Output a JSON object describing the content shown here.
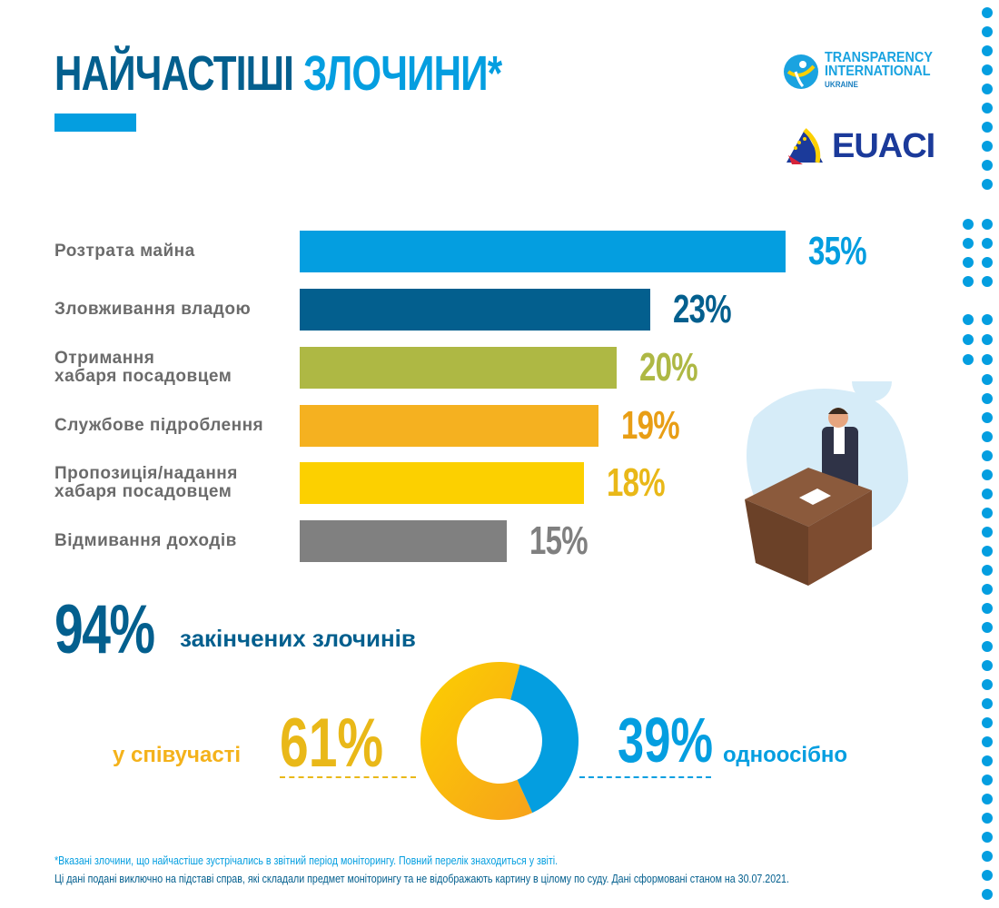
{
  "header": {
    "title_part1": "НАЙЧАСТІШІ",
    "title_part2": "ЗЛОЧИНИ*"
  },
  "logos": {
    "ti_line1": "TRANSPARENCY",
    "ti_line2": "INTERNATIONAL",
    "ti_line3": "UKRAINE",
    "euaci": "EUACI"
  },
  "colors": {
    "dark_blue": "#035f8e",
    "blue": "#049ee0",
    "olive": "#aeb844",
    "orange": "#f5b120",
    "yellow": "#fcd000",
    "gray": "#808080"
  },
  "chart_data": [
    {
      "type": "bar",
      "orientation": "horizontal",
      "title": "Найчастіші злочини*",
      "categories": [
        "Розтрата майна",
        "Зловживання владою",
        "Отримання хабаря посадовцем",
        "Службове підроблення",
        "Пропозиція/надання хабаря посадовцем",
        "Відмивання доходів"
      ],
      "label_lines": [
        [
          "Розтрата майна"
        ],
        [
          "Зловживання владою"
        ],
        [
          "Отримання",
          "хабаря посадовцем"
        ],
        [
          "Службове підроблення"
        ],
        [
          "Пропозиція/надання",
          "хабаря посадовцем"
        ],
        [
          "Відмивання доходів"
        ]
      ],
      "values": [
        35,
        23,
        20,
        19,
        18,
        15
      ],
      "value_labels": [
        "35%",
        "23%",
        "20%",
        "19%",
        "18%",
        "15%"
      ],
      "bar_colors": [
        "#049ee0",
        "#035f8e",
        "#aeb844",
        "#f5b120",
        "#fcd000",
        "#808080"
      ],
      "label_colors": [
        "#049ee0",
        "#035f8e",
        "#aeb844",
        "#e89e15",
        "#e9b818",
        "#808080"
      ]
    },
    {
      "type": "pie",
      "donut": true,
      "categories": [
        "у співучасті",
        "одноосібно"
      ],
      "values": [
        61,
        39
      ],
      "value_labels": [
        "61%",
        "39%"
      ],
      "colors": [
        "#fbb813",
        "#049ee0"
      ]
    }
  ],
  "summary": {
    "value": "94%",
    "text": "закінчених злочинів"
  },
  "footnotes": {
    "line1": "*Вказані злочини, що найчастіше зустрічались в звітний період моніторингу. Повний перелік знаходиться у звіті.",
    "line2": "Ці дані подані виключно на підставі справ, які складали предмет моніторингу та не відображають картину в цілому по суду. Дані сформовані станом на 30.07.2021."
  }
}
